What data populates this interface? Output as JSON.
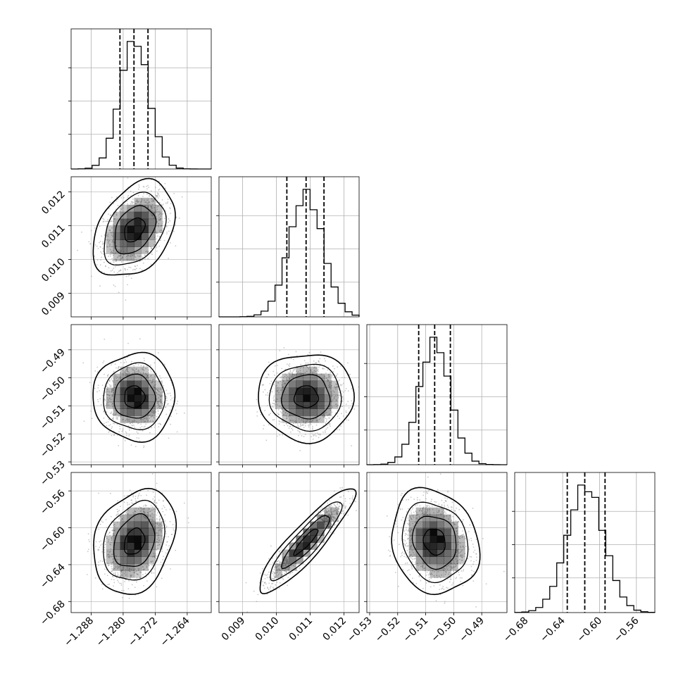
{
  "chart_data": {
    "type": "corner",
    "parameters": [
      {
        "range": [
          -1.293,
          -1.258
        ],
        "ticks": [
          -1.288,
          -1.28,
          -1.272,
          -1.264
        ],
        "tick_labels": [
          "−1.288",
          "−1.280",
          "−1.272",
          "−1.264"
        ],
        "mean": -1.2772,
        "sd": 0.0036,
        "quantiles": [
          -1.2808,
          -1.2773,
          -1.2738
        ]
      },
      {
        "range": [
          0.0083,
          0.01245
        ],
        "ticks": [
          0.009,
          0.01,
          0.011,
          0.012
        ],
        "tick_labels": [
          "0.009",
          "0.010",
          "0.011",
          "0.012"
        ],
        "mean": 0.01088,
        "sd": 0.0005,
        "quantiles": [
          0.01031,
          0.01088,
          0.01141
        ]
      },
      {
        "range": [
          -0.531,
          -0.481
        ],
        "ticks": [
          -0.53,
          -0.52,
          -0.51,
          -0.5,
          -0.49
        ],
        "tick_labels": [
          "−0.53",
          "−0.52",
          "−0.51",
          "−0.50",
          "−0.49"
        ],
        "mean": -0.5068,
        "sd": 0.0055,
        "quantiles": [
          -0.5125,
          -0.5068,
          -0.5012
        ]
      },
      {
        "range": [
          -0.692,
          -0.54
        ],
        "ticks": [
          -0.68,
          -0.64,
          -0.6,
          -0.56
        ],
        "tick_labels": [
          "−0.68",
          "−0.64",
          "−0.60",
          "−0.56"
        ],
        "mean": -0.615,
        "sd": 0.02,
        "quantiles": [
          -0.635,
          -0.616,
          -0.594
        ]
      }
    ],
    "correlations": [
      [
        1,
        0.35,
        0,
        0.25
      ],
      [
        0.35,
        1,
        0,
        0.9
      ],
      [
        0,
        0,
        1,
        -0.15
      ],
      [
        0.25,
        0.9,
        -0.15,
        1
      ]
    ],
    "contour_levels_sigma": [
      0.5,
      1.0,
      1.5,
      2.0
    ],
    "histogram_bins": 20,
    "grid": true,
    "colors": {
      "line": "#000000",
      "grid": "#b0b0b0",
      "scatter": "#9a9a9a",
      "density": "#000000"
    }
  }
}
